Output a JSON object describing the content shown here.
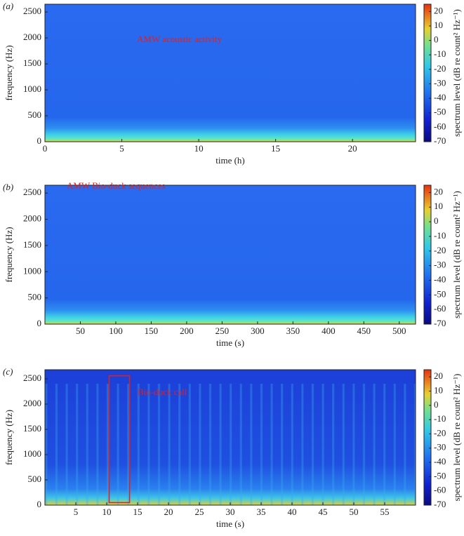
{
  "chart_data": [
    {
      "type": "spectrogram",
      "panel_label": "(a)",
      "xlabel": "time (h)",
      "ylabel": "frequency (Hz)",
      "xlim": [
        0,
        24.1
      ],
      "xticks": [
        0,
        5,
        10,
        15,
        20
      ],
      "ylim": [
        0,
        2650
      ],
      "yticks": [
        0,
        500,
        1000,
        1500,
        2000,
        2500
      ],
      "clim": [
        -70,
        25
      ],
      "cticks": [
        -70,
        -60,
        -50,
        -40,
        -30,
        -20,
        -10,
        0,
        10,
        20
      ],
      "colorbar_label": "spectrum level (dB re count² Hz⁻¹)",
      "annotation": "AMW acoustic activity"
    },
    {
      "type": "spectrogram",
      "panel_label": "(b)",
      "xlabel": "time (s)",
      "ylabel": "frequency (Hz)",
      "xlim": [
        0,
        523
      ],
      "xticks": [
        50,
        100,
        150,
        200,
        250,
        300,
        350,
        400,
        450,
        500
      ],
      "ylim": [
        0,
        2650
      ],
      "yticks": [
        0,
        500,
        1000,
        1500,
        2000,
        2500
      ],
      "clim": [
        -70,
        25
      ],
      "cticks": [
        -70,
        -60,
        -50,
        -40,
        -30,
        -20,
        -10,
        0,
        10,
        20
      ],
      "colorbar_label": "spectrum level (dB re count² Hz⁻¹)",
      "annotation": "AMW Bio-duck sequences"
    },
    {
      "type": "spectrogram",
      "panel_label": "(c)",
      "xlabel": "time (s)",
      "ylabel": "frequency (Hz)",
      "xlim": [
        0,
        60
      ],
      "xticks": [
        5,
        10,
        15,
        20,
        25,
        30,
        35,
        40,
        45,
        50,
        55
      ],
      "ylim": [
        0,
        2680
      ],
      "yticks": [
        0,
        500,
        1000,
        1500,
        2000,
        2500
      ],
      "clim": [
        -70,
        25
      ],
      "cticks": [
        -70,
        -60,
        -50,
        -40,
        -30,
        -20,
        -10,
        0,
        10,
        20
      ],
      "colorbar_label": "spectrum level (dB re count² Hz⁻¹)",
      "annotation": "Bio-duck call",
      "highlight_box": {
        "x": [
          10.4,
          13.7
        ],
        "y": [
          50,
          2560
        ]
      }
    }
  ]
}
